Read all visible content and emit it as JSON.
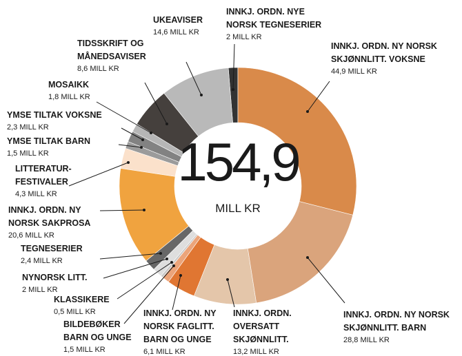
{
  "chart_data": {
    "type": "donut",
    "categories": [
      [
        "INNKJ. ORDN. NY NORSK",
        "SKJØNNLITT. VOKSNE"
      ],
      [
        "INNKJ. ORDN. NY NORSK",
        "SKJØNNLITT. BARN"
      ],
      [
        "INNKJ. ORDN.",
        "OVERSATT",
        "SKJØNNLITT."
      ],
      [
        "INNKJ. ORDN. NY",
        "NORSK FAGLITT.",
        "BARN OG UNGE"
      ],
      [
        "BILDEBØKER",
        "BARN OG UNGE"
      ],
      [
        "KLASSIKERE"
      ],
      [
        "NYNORSK LITT."
      ],
      [
        "TEGNESERIER"
      ],
      [
        "INNKJ. ORDN. NY",
        "NORSK SAKPROSA"
      ],
      [
        "LITTERATUR-",
        "FESTIVALER"
      ],
      [
        "YMSE TILTAK BARN"
      ],
      [
        "YMSE TILTAK VOKSNE"
      ],
      [
        "MOSAIKK"
      ],
      [
        "TIDSSKRIFT OG",
        "MÅNEDSAVISER"
      ],
      [
        "UKEAVISER"
      ],
      [
        "INNKJ. ORDN. NYE",
        "NORSK TEGNESERIER"
      ]
    ],
    "values": [
      44.9,
      28.8,
      13.2,
      6.1,
      1.5,
      0.5,
      2,
      2.4,
      20.6,
      4.3,
      1.5,
      2.3,
      1.8,
      8.6,
      14.6,
      2
    ],
    "value_labels": [
      "44,9 MILL KR",
      "28,8 MILL KR",
      "13,2 MILL KR",
      "6,1 MILL KR",
      "1,5 MILL KR",
      "0,5 MILL KR",
      "2 MILL KR",
      "2,4 MILL KR",
      "20,6 MILL KR",
      "4,3 MILL KR",
      "1,5 MILL KR",
      "2,3 MILL KR",
      "1,8 MILL KR",
      "8,6 MILL KR",
      "14,6 MILL KR",
      "2 MILL KR"
    ],
    "colors": [
      "#d98a4a",
      "#daa47c",
      "#e4c6aa",
      "#e07632",
      "#eba47a",
      "#c8c8c8",
      "#dedede",
      "#676767",
      "#f0a33f",
      "#fbe1cb",
      "#9b9b9b",
      "#828282",
      "#b6b6b6",
      "#45403d",
      "#b9b9b9",
      "#333333"
    ],
    "center_text": [
      "154,9",
      "MILL KR"
    ]
  }
}
